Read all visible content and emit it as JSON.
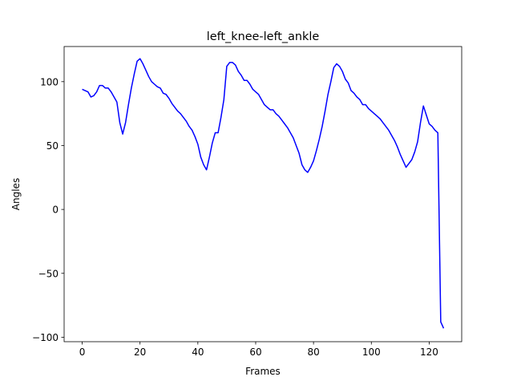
{
  "chart_data": {
    "type": "line",
    "title": "left_knee-left_ankle",
    "x_label": "Frames",
    "y_label": "Angles",
    "x": [
      0,
      1,
      2,
      3,
      4,
      5,
      6,
      7,
      8,
      9,
      10,
      11,
      12,
      13,
      14,
      15,
      16,
      17,
      18,
      19,
      20,
      21,
      22,
      23,
      24,
      25,
      26,
      27,
      28,
      29,
      30,
      31,
      32,
      33,
      34,
      35,
      36,
      37,
      38,
      39,
      40,
      41,
      42,
      43,
      44,
      45,
      46,
      47,
      48,
      49,
      50,
      51,
      52,
      53,
      54,
      55,
      56,
      57,
      58,
      59,
      60,
      61,
      62,
      63,
      64,
      65,
      66,
      67,
      68,
      69,
      70,
      71,
      72,
      73,
      74,
      75,
      76,
      77,
      78,
      79,
      80,
      81,
      82,
      83,
      84,
      85,
      86,
      87,
      88,
      89,
      90,
      91,
      92,
      93,
      94,
      95,
      96,
      97,
      98,
      99,
      100,
      101,
      102,
      103,
      104,
      105,
      106,
      107,
      108,
      109,
      110,
      111,
      112,
      113,
      114,
      115,
      116,
      117,
      118,
      119,
      120,
      121,
      122,
      123,
      124,
      125
    ],
    "values": [
      94,
      93,
      92,
      88,
      89,
      92,
      97,
      97,
      95,
      95,
      92,
      88,
      84,
      68,
      59,
      68,
      82,
      95,
      106,
      116,
      118,
      114,
      109,
      104,
      100,
      98,
      96,
      95,
      91,
      90,
      87,
      83,
      80,
      77,
      75,
      72,
      69,
      65,
      62,
      57,
      51,
      41,
      35,
      31,
      41,
      52,
      60,
      60,
      72,
      86,
      112,
      115,
      115,
      113,
      108,
      105,
      101,
      101,
      98,
      94,
      92,
      90,
      86,
      82,
      80,
      78,
      78,
      75,
      73,
      70,
      67,
      64,
      60,
      56,
      50,
      44,
      35,
      31,
      29,
      33,
      38,
      46,
      55,
      65,
      77,
      90,
      100,
      111,
      114,
      112,
      108,
      102,
      99,
      93,
      91,
      88,
      86,
      82,
      82,
      79,
      77,
      75,
      73,
      71,
      68,
      65,
      62,
      58,
      54,
      49,
      43,
      38,
      33,
      36,
      39,
      45,
      53,
      68,
      81,
      74,
      67,
      65,
      62,
      60,
      -88,
      -93
    ],
    "color": "#0000ff",
    "xlim": [
      -6.25,
      131.25
    ],
    "ylim": [
      -103.5,
      127.5
    ],
    "xticks": [
      0,
      20,
      40,
      60,
      80,
      100,
      120
    ],
    "yticks": [
      {
        "value": -100,
        "label": "−100"
      },
      {
        "value": -50,
        "label": "−50"
      },
      0,
      50,
      100
    ]
  }
}
